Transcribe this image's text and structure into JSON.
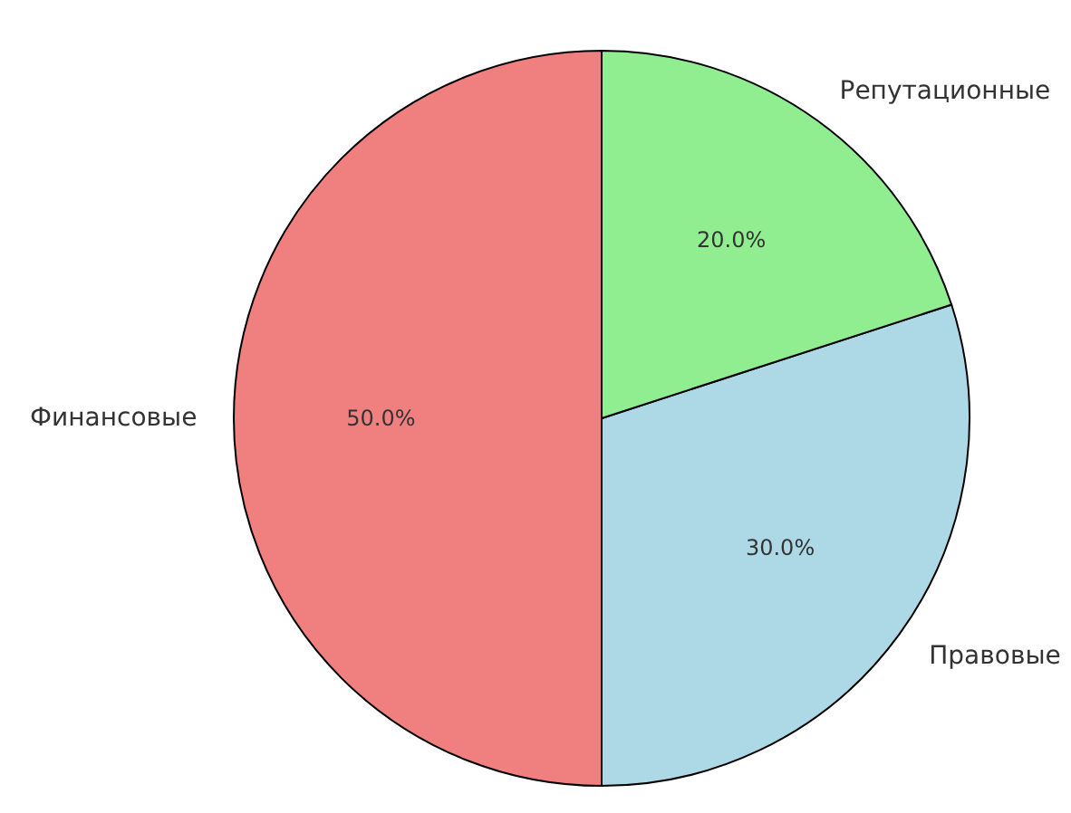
{
  "chart_data": {
    "type": "pie",
    "categories": [
      "Финансовые",
      "Правовые",
      "Репутационные"
    ],
    "values": [
      50,
      30,
      20
    ],
    "colors": [
      "#f08080",
      "#add8e6",
      "#90ee90"
    ],
    "value_labels": [
      "50.0%",
      "30.0%",
      "20.0%"
    ],
    "legend": false
  }
}
